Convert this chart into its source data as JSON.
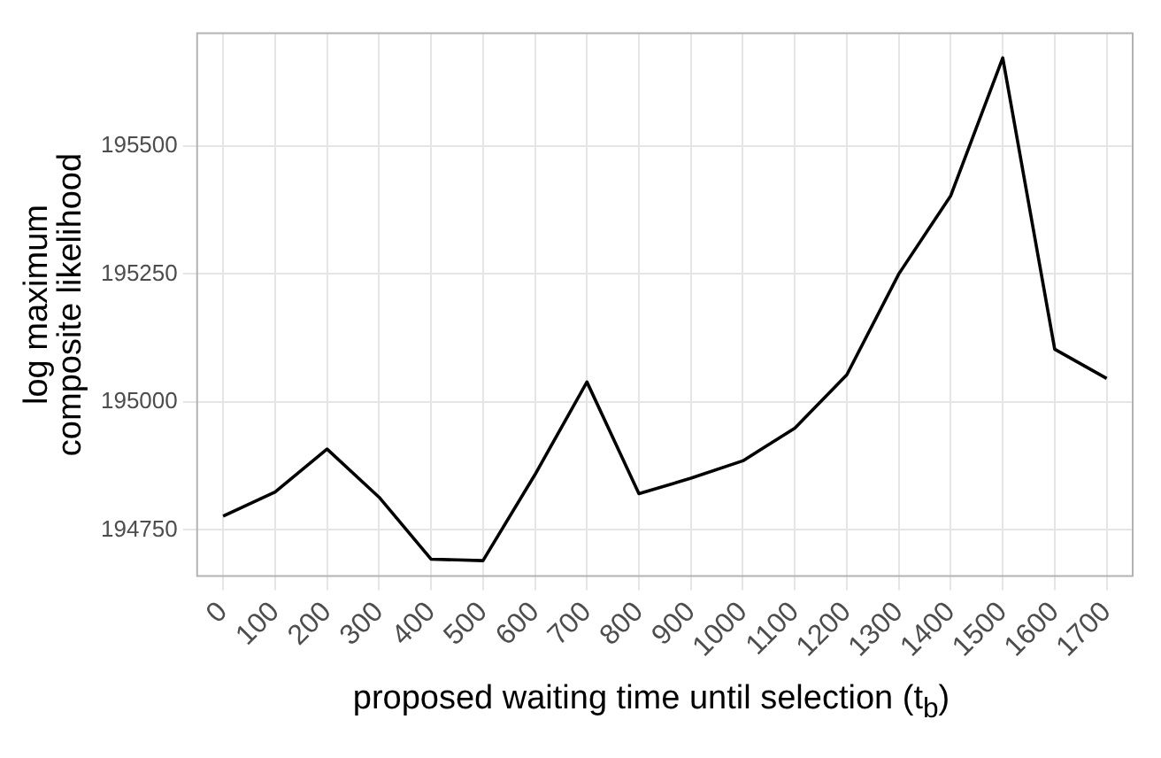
{
  "chart_data": {
    "type": "line",
    "xlabel": "proposed waiting time until selection (t$_{b}$)",
    "ylabel": "log maximum\ncomposite likelihood",
    "categories": [
      "0",
      "100",
      "200",
      "300",
      "400",
      "500",
      "600",
      "700",
      "800",
      "900",
      "1000",
      "1100",
      "1200",
      "1300",
      "1400",
      "1500",
      "1600",
      "1700"
    ],
    "series": [
      {
        "color": "#000000",
        "values": [
          194777,
          194824,
          194908,
          194814,
          194693,
          194690,
          194858,
          195039,
          194821,
          194851,
          194885,
          194949,
          195053,
          195250,
          195403,
          195672,
          195103,
          195046
        ]
      }
    ],
    "ylim": [
      194660,
      195720
    ],
    "yticks": [
      194750,
      195000,
      195250,
      195500
    ],
    "grid": true,
    "legend": false,
    "marker": "none",
    "line_style": "solid"
  }
}
